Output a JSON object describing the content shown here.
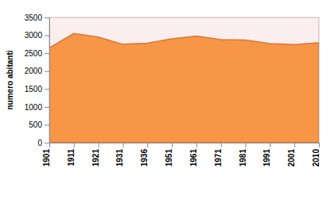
{
  "chart_data": {
    "type": "area",
    "y_label": "numero abitanti",
    "categories": [
      "1901",
      "1911",
      "1921",
      "1931",
      "1936",
      "1951",
      "1961",
      "1971",
      "1981",
      "1991",
      "2001",
      "2010"
    ],
    "values": [
      2650,
      3050,
      2950,
      2750,
      2780,
      2900,
      2980,
      2880,
      2870,
      2770,
      2740,
      2790
    ],
    "color": "#f79646",
    "ylim": [
      0,
      3500
    ],
    "yticks": [
      0,
      500,
      1000,
      1500,
      2000,
      2500,
      3000,
      3500
    ],
    "grid": false
  }
}
